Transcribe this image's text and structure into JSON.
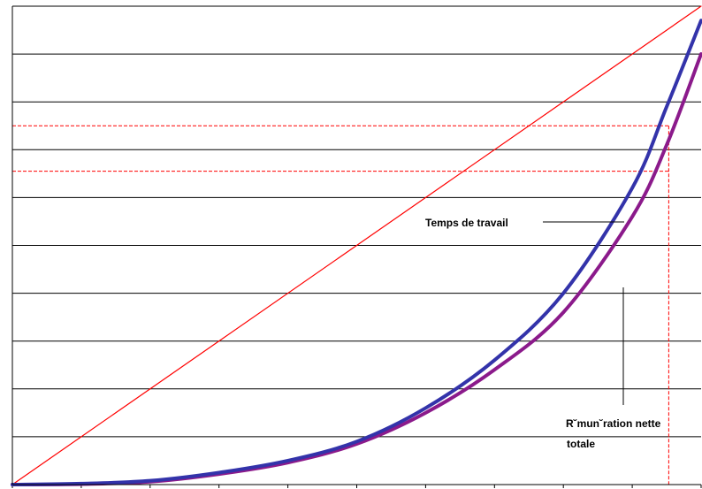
{
  "chart_data": {
    "type": "line",
    "title": "",
    "xlabel": "",
    "ylabel": "",
    "xlim": [
      0,
      100
    ],
    "ylim": [
      0,
      100
    ],
    "x_ticks": [
      0,
      10,
      20,
      30,
      40,
      50,
      60,
      70,
      80,
      90,
      100
    ],
    "y_gridlines": [
      0,
      10,
      20,
      30,
      40,
      50,
      60,
      70,
      80,
      90,
      100
    ],
    "grid": true,
    "x": [
      0,
      10,
      20,
      30,
      40,
      50,
      60,
      70,
      80,
      90,
      95,
      100
    ],
    "series": [
      {
        "name": "Temps de travail",
        "color": "#3333aa",
        "values": [
          0,
          0.2,
          0.8,
          2.5,
          5,
          9,
          16,
          26,
          40,
          62,
          79,
          97
        ]
      },
      {
        "name": "R˘mun˘ration nette totale",
        "color": "#8b1a8b",
        "values": [
          0,
          0.1,
          0.6,
          2.2,
          4.6,
          8.5,
          15,
          24,
          36,
          56,
          71,
          90
        ]
      },
      {
        "name": "",
        "color": "#ff0000",
        "values": [
          0,
          10,
          20,
          30,
          40,
          50,
          60,
          70,
          80,
          90,
          95,
          100
        ]
      }
    ],
    "reference_lines": [
      {
        "orientation": "horizontal",
        "value": 75,
        "style": "dashed",
        "color": "#ff0000"
      },
      {
        "orientation": "horizontal",
        "value": 65.5,
        "style": "dashed",
        "color": "#ff0000"
      },
      {
        "orientation": "vertical",
        "value": 95.3,
        "style": "dashed",
        "color": "#ff0000"
      }
    ],
    "annotations": [
      {
        "text": "Temps de travail",
        "target_series": 0
      },
      {
        "text": "R˘mun˘ration nette",
        "text2": "totale",
        "target_series": 1
      }
    ]
  }
}
